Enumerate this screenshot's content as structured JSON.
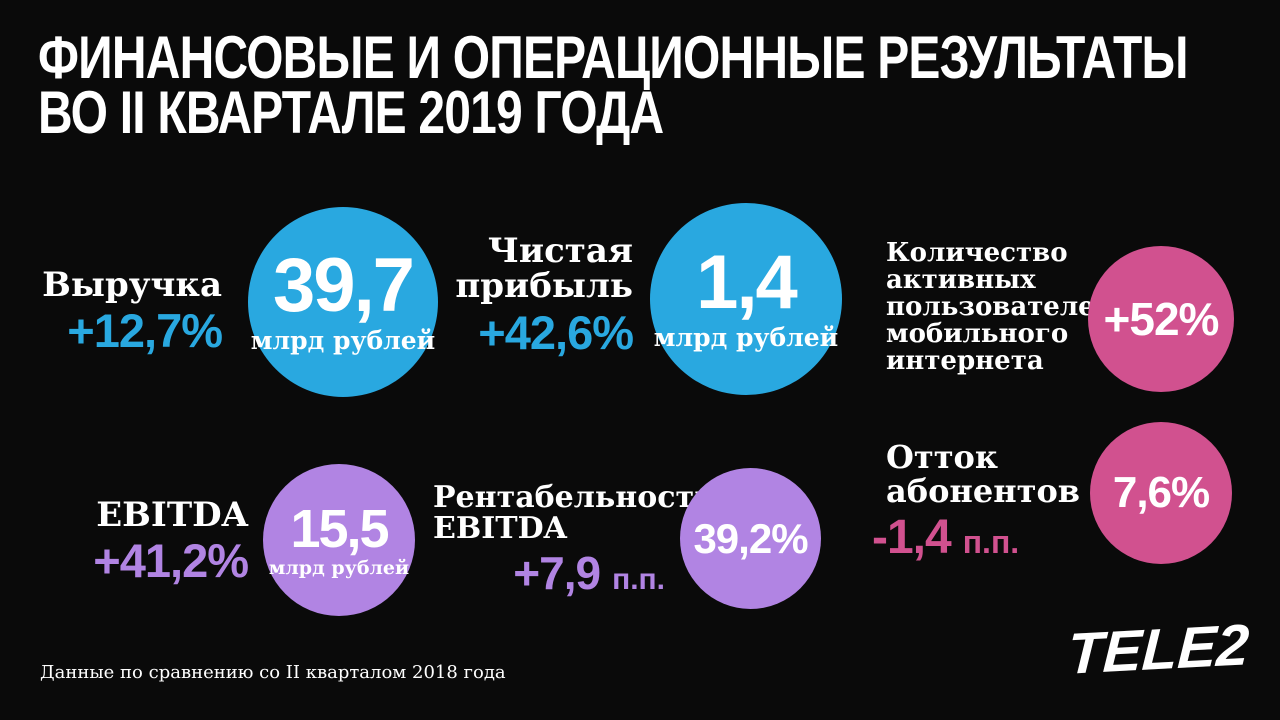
{
  "title": {
    "line1": "ФИНАНСОВЫЕ И ОПЕРАЦИОННЫЕ РЕЗУЛЬТАТЫ",
    "line2": "ВО II КВАРТАЛЕ 2019 ГОДА"
  },
  "metrics": [
    {
      "id": "revenue",
      "label": "Выручка",
      "delta": "+12,7%",
      "delta_suffix": "",
      "value": "39,7",
      "unit": "млрд рублей",
      "circle_color": "#29a8e0"
    },
    {
      "id": "net-profit",
      "label": "Чистая прибыль",
      "delta": "+42,6%",
      "delta_suffix": "",
      "value": "1,4",
      "unit": "млрд рублей",
      "circle_color": "#29a8e0"
    },
    {
      "id": "mobile-internet-users",
      "label": "Количество активных пользователей мобильного интернета",
      "value": "+52%",
      "circle_color": "#d1518f"
    },
    {
      "id": "ebitda",
      "label": "EBITDA",
      "delta": "+41,2%",
      "delta_suffix": "",
      "value": "15,5",
      "unit": "млрд рублей",
      "circle_color": "#b184e3"
    },
    {
      "id": "ebitda-margin",
      "label": "Рентабельность EBITDA",
      "delta": "+7,9",
      "delta_suffix": "п.п.",
      "value": "39,2%",
      "circle_color": "#b184e3"
    },
    {
      "id": "churn",
      "label": "Отток абонентов",
      "delta": "-1,4",
      "delta_suffix": "п.п.",
      "value": "7,6%",
      "circle_color": "#d1518f"
    }
  ],
  "footnote": "Данные по сравнению со II кварталом 2018 года",
  "logo_text": "TELE2",
  "colors": {
    "background": "#0a0a0a",
    "blue": "#29a8e0",
    "purple": "#b184e3",
    "pink": "#d1518f",
    "text": "#ffffff"
  },
  "chart_data": {
    "type": "table",
    "title": "ФИНАНСОВЫЕ И ОПЕРАЦИОННЫЕ РЕЗУЛЬТАТЫ ВО II КВАРТАЛЕ 2019 ГОДА",
    "comparison_note": "Данные по сравнению со II кварталом 2018 года",
    "rows": [
      {
        "metric": "Выручка",
        "value": 39.7,
        "unit": "млрд рублей",
        "change_yoy": "+12,7%"
      },
      {
        "metric": "Чистая прибыль",
        "value": 1.4,
        "unit": "млрд рублей",
        "change_yoy": "+42,6%"
      },
      {
        "metric": "Количество активных пользователей мобильного интернета",
        "value": null,
        "unit": "",
        "change_yoy": "+52%"
      },
      {
        "metric": "EBITDA",
        "value": 15.5,
        "unit": "млрд рублей",
        "change_yoy": "+41,2%"
      },
      {
        "metric": "Рентабельность EBITDA",
        "value": "39,2%",
        "unit": "",
        "change_yoy": "+7,9 п.п."
      },
      {
        "metric": "Отток абонентов",
        "value": "7,6%",
        "unit": "",
        "change_yoy": "-1,4 п.п."
      }
    ]
  }
}
